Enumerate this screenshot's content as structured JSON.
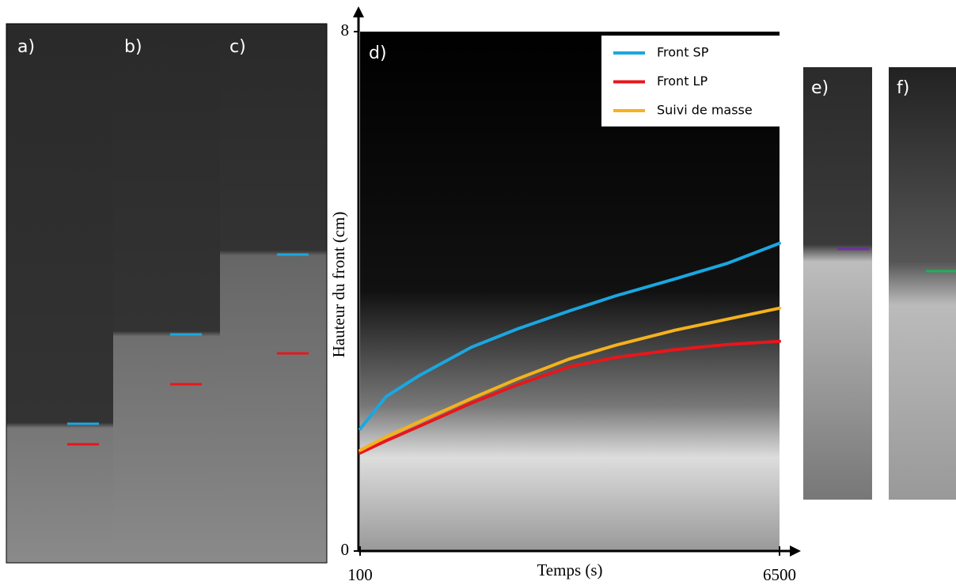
{
  "panels": [
    "a)",
    "b)",
    "c)",
    "e)",
    "f)"
  ],
  "chart_data": {
    "type": "line",
    "panel_label": "d)",
    "xlabel": "Temps (s)",
    "ylabel": "Hauteur du front (cm)",
    "x": [
      100,
      500,
      1000,
      1800,
      2500,
      3300,
      4000,
      4900,
      5700,
      6500
    ],
    "series": [
      {
        "name": "Front SP",
        "color": "#1aa7e0",
        "values": [
          1.88,
          2.38,
          2.7,
          3.14,
          3.42,
          3.7,
          3.93,
          4.19,
          4.43,
          4.74
        ]
      },
      {
        "name": "Front LP",
        "color": "#e8161b",
        "values": [
          1.51,
          1.7,
          1.92,
          2.28,
          2.56,
          2.84,
          2.98,
          3.1,
          3.18,
          3.23
        ]
      },
      {
        "name": "Suivi de masse",
        "color": "#f5b21c",
        "values": [
          1.55,
          1.76,
          1.99,
          2.35,
          2.65,
          2.96,
          3.17,
          3.4,
          3.57,
          3.74
        ]
      }
    ],
    "xlim": [
      100,
      6500
    ],
    "ylim": [
      0,
      8
    ],
    "xticks": [
      100,
      6500
    ],
    "yticks": [
      0,
      8
    ]
  }
}
